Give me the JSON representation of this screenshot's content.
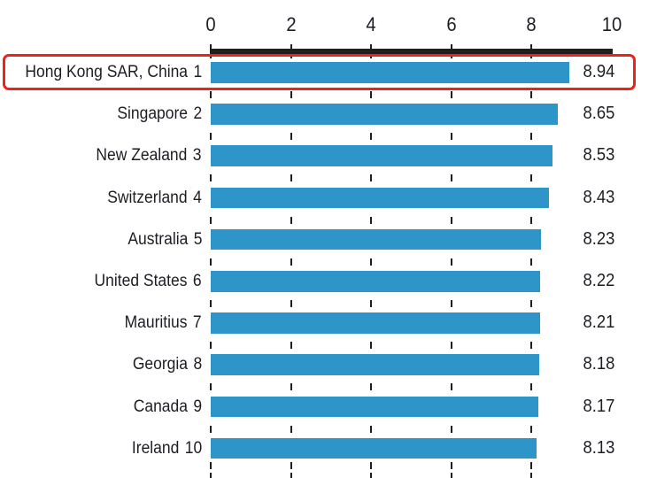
{
  "chart_data": {
    "type": "bar",
    "orientation": "horizontal",
    "title": "",
    "categories": [
      "Hong Kong SAR, China",
      "Singapore",
      "New Zealand",
      "Switzerland",
      "Australia",
      "United States",
      "Mauritius",
      "Georgia",
      "Canada",
      "Ireland"
    ],
    "ranks": [
      1,
      2,
      3,
      4,
      5,
      6,
      7,
      8,
      9,
      10
    ],
    "values": [
      8.94,
      8.65,
      8.53,
      8.43,
      8.23,
      8.22,
      8.21,
      8.18,
      8.17,
      8.13
    ],
    "value_labels": [
      "8.94",
      "8.65",
      "8.53",
      "8.43",
      "8.23",
      "8.22",
      "8.21",
      "8.18",
      "8.17",
      "8.13"
    ],
    "xlim": [
      0,
      10
    ],
    "x_ticks": [
      0,
      2,
      4,
      6,
      8,
      10
    ],
    "x_tick_labels": [
      "0",
      "2",
      "4",
      "6",
      "8",
      "10"
    ],
    "gridline_ticks": [
      0,
      2,
      4,
      6,
      8
    ],
    "grid_style": "dashed-vertical",
    "legend": "none",
    "axis_position": "top",
    "highlight": {
      "category": "Hong Kong SAR, China",
      "index": 0,
      "style": "red-outline-box"
    }
  },
  "colors": {
    "bar": "#2e95c8",
    "highlight_box": "#ef2118",
    "axis": "#1f1f1f",
    "text": "#1d1d24",
    "background": "#ffffff"
  }
}
